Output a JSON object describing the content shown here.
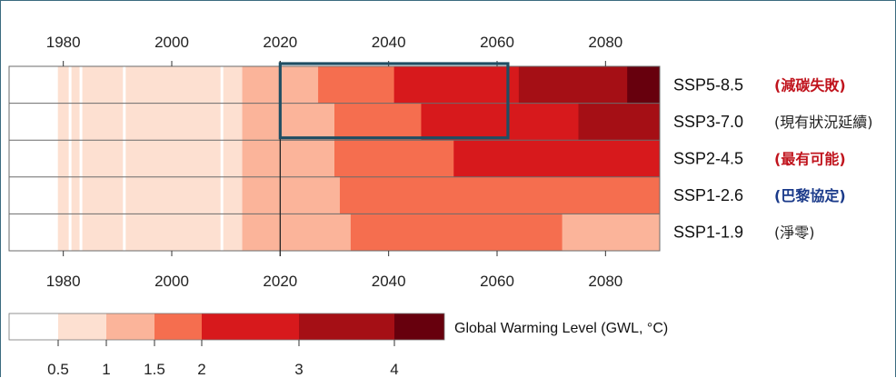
{
  "chart_data": {
    "type": "heatmap",
    "x_ticks": [
      1980,
      2000,
      2020,
      2040,
      2060,
      2080
    ],
    "x_range": [
      1970,
      2090
    ],
    "color_scale": {
      "title": "Global Warming Level (GWL, °C)",
      "tick_labels": [
        "0.5",
        "1",
        "1.5",
        "2",
        "3",
        "4"
      ],
      "colors": [
        "#ffffff",
        "#fde0d1",
        "#fbb49a",
        "#f56e4f",
        "#d7191c",
        "#a50f15",
        "#67000d"
      ],
      "bins": [
        {
          "from": null,
          "to": 0.5
        },
        {
          "from": 0.5,
          "to": 1
        },
        {
          "from": 1,
          "to": 1.5
        },
        {
          "from": 1.5,
          "to": 2
        },
        {
          "from": 2,
          "to": 3
        },
        {
          "from": 3,
          "to": 4
        },
        {
          "from": 4,
          "to": null
        }
      ]
    },
    "scenarios": [
      {
        "name": "SSP5-8.5",
        "note": "(減碳失敗)",
        "note_color": "#c0141d",
        "segments": [
          {
            "start": 1970,
            "end": 1979,
            "level": 0
          },
          {
            "start": 1979,
            "end": 2013,
            "level": 1
          },
          {
            "start": 2013,
            "end": 2027,
            "level": 2
          },
          {
            "start": 2027,
            "end": 2041,
            "level": 3
          },
          {
            "start": 2041,
            "end": 2064,
            "level": 4
          },
          {
            "start": 2064,
            "end": 2084,
            "level": 5
          },
          {
            "start": 2084,
            "end": 2090,
            "level": 6
          }
        ]
      },
      {
        "name": "SSP3-7.0",
        "note": "(現有狀況延續)",
        "note_color": "#222222",
        "segments": [
          {
            "start": 1970,
            "end": 1979,
            "level": 0
          },
          {
            "start": 1979,
            "end": 2013,
            "level": 1
          },
          {
            "start": 2013,
            "end": 2030,
            "level": 2
          },
          {
            "start": 2030,
            "end": 2046,
            "level": 3
          },
          {
            "start": 2046,
            "end": 2075,
            "level": 4
          },
          {
            "start": 2075,
            "end": 2090,
            "level": 5
          }
        ]
      },
      {
        "name": "SSP2-4.5",
        "note": "(最有可能)",
        "note_color": "#c0141d",
        "segments": [
          {
            "start": 1970,
            "end": 1979,
            "level": 0
          },
          {
            "start": 1979,
            "end": 2013,
            "level": 1
          },
          {
            "start": 2013,
            "end": 2030,
            "level": 2
          },
          {
            "start": 2030,
            "end": 2052,
            "level": 3
          },
          {
            "start": 2052,
            "end": 2090,
            "level": 4
          }
        ]
      },
      {
        "name": "SSP1-2.6",
        "note": "(巴黎協定)",
        "note_color": "#1a3a8a",
        "segments": [
          {
            "start": 1970,
            "end": 1979,
            "level": 0
          },
          {
            "start": 1979,
            "end": 2013,
            "level": 1
          },
          {
            "start": 2013,
            "end": 2031,
            "level": 2
          },
          {
            "start": 2031,
            "end": 2090,
            "level": 3
          }
        ]
      },
      {
        "name": "SSP1-1.9",
        "note": "(淨零)",
        "note_color": "#222222",
        "segments": [
          {
            "start": 1970,
            "end": 1979,
            "level": 0
          },
          {
            "start": 1979,
            "end": 2013,
            "level": 1
          },
          {
            "start": 2013,
            "end": 2033,
            "level": 2
          },
          {
            "start": 2033,
            "end": 2072,
            "level": 3
          },
          {
            "start": 2072,
            "end": 2090,
            "level": 2
          }
        ]
      }
    ],
    "historic_gaps": [
      1981,
      1983,
      1991,
      2009
    ],
    "vertical_line_year": 2020,
    "highlight": {
      "rows": [
        "SSP5-8.5",
        "SSP3-7.0"
      ],
      "start": 2020,
      "end": 2062,
      "color": "#1f4e63"
    }
  }
}
